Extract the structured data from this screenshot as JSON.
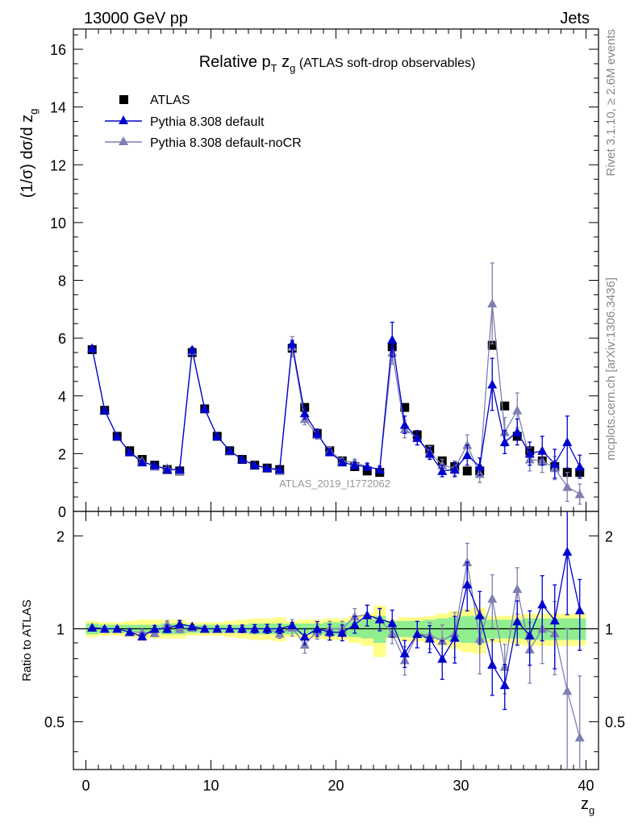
{
  "header": {
    "energy": "13000 GeV pp",
    "group": "Jets",
    "title_main": "Relative p",
    "title_sub_t": "T",
    "title_mid": " z",
    "title_sub_g": "g",
    "title_paren": " (ATLAS soft-drop observables)",
    "ylabel": "(1/σ) dσ/d z",
    "ylabel_sub": "g",
    "xlabel": "z",
    "xlabel_sub": "g",
    "ratio_label": "Ratio to ATLAS",
    "watermark": "ATLAS_2019_I1772062",
    "rivet_note": "Rivet 3.1.10, ≥ 2.6M events",
    "mcplots_note": "mcplots.cern.ch [arXiv:1306.3436]"
  },
  "legend": {
    "atlas": "ATLAS",
    "pythia_default": "Pythia 8.308 default",
    "pythia_nocr": "Pythia 8.308 default-noCR"
  },
  "colors": {
    "data": "#000000",
    "pythia_default": "#0000cc",
    "pythia_nocr": "#7f7fb2",
    "band_inner": "#90ee90",
    "band_outer": "#ffff88"
  },
  "chart_data": {
    "type": "scatter",
    "x": [
      0.5,
      1.5,
      2.5,
      3.5,
      4.5,
      5.5,
      6.5,
      7.5,
      8.5,
      9.5,
      10.5,
      11.5,
      12.5,
      13.5,
      14.5,
      15.5,
      16.5,
      17.5,
      18.5,
      19.5,
      20.5,
      21.5,
      22.5,
      23.5,
      24.5,
      25.5,
      26.5,
      27.5,
      28.5,
      29.5,
      30.5,
      31.5,
      32.5,
      33.5,
      34.5,
      35.5,
      36.5,
      37.5,
      38.5,
      39.5
    ],
    "xlim": [
      -1,
      41
    ],
    "xticks": [
      0,
      10,
      20,
      30,
      40
    ],
    "main_ylim": [
      0,
      16.7
    ],
    "main_yticks": [
      0,
      2,
      4,
      6,
      8,
      10,
      12,
      14,
      16
    ],
    "ratio_ylim": [
      0.35,
      2.4
    ],
    "ratio_yticks": [
      0.5,
      1,
      2
    ],
    "series": [
      {
        "name": "ATLAS",
        "values": [
          5.6,
          3.5,
          2.6,
          2.1,
          1.8,
          1.6,
          1.45,
          1.4,
          5.5,
          3.55,
          2.6,
          2.1,
          1.8,
          1.6,
          1.5,
          1.45,
          5.65,
          3.6,
          2.7,
          2.1,
          1.75,
          1.55,
          1.4,
          1.35,
          5.7,
          3.6,
          2.65,
          2.15,
          1.75,
          1.55,
          1.4,
          1.4,
          5.75,
          3.65,
          2.6,
          2.1,
          1.75,
          1.55,
          1.35,
          1.35
        ],
        "rel_err_inner": [
          0.04,
          0.03,
          0.03,
          0.03,
          0.03,
          0.03,
          0.04,
          0.04,
          0.03,
          0.03,
          0.03,
          0.03,
          0.03,
          0.04,
          0.04,
          0.04,
          0.04,
          0.04,
          0.04,
          0.05,
          0.05,
          0.06,
          0.07,
          0.1,
          0.06,
          0.06,
          0.06,
          0.07,
          0.08,
          0.09,
          0.1,
          0.1,
          0.07,
          0.07,
          0.07,
          0.08,
          0.08,
          0.08,
          0.08,
          0.08
        ],
        "rel_err_outer": [
          0.06,
          0.05,
          0.05,
          0.06,
          0.07,
          0.07,
          0.07,
          0.07,
          0.05,
          0.05,
          0.05,
          0.06,
          0.07,
          0.08,
          0.08,
          0.09,
          0.06,
          0.07,
          0.07,
          0.08,
          0.08,
          0.1,
          0.12,
          0.19,
          0.07,
          0.09,
          0.09,
          0.1,
          0.12,
          0.14,
          0.16,
          0.17,
          0.1,
          0.1,
          0.11,
          0.12,
          0.12,
          0.12,
          0.12,
          0.12
        ]
      },
      {
        "name": "Pythia 8.308 default",
        "values": [
          5.65,
          3.5,
          2.6,
          2.05,
          1.7,
          1.6,
          1.45,
          1.45,
          5.6,
          3.55,
          2.6,
          2.1,
          1.8,
          1.6,
          1.5,
          1.45,
          5.8,
          3.4,
          2.7,
          2.05,
          1.7,
          1.6,
          1.55,
          1.45,
          5.95,
          3.0,
          2.55,
          2.0,
          1.4,
          1.45,
          1.95,
          1.55,
          4.4,
          2.4,
          2.75,
          2.0,
          2.1,
          1.65,
          2.4,
          1.55
        ],
        "err": [
          0.05,
          0.05,
          0.04,
          0.04,
          0.04,
          0.04,
          0.04,
          0.04,
          0.08,
          0.06,
          0.05,
          0.05,
          0.05,
          0.05,
          0.05,
          0.05,
          0.12,
          0.2,
          0.15,
          0.12,
          0.1,
          0.1,
          0.12,
          0.12,
          0.6,
          0.3,
          0.25,
          0.2,
          0.2,
          0.25,
          0.35,
          0.3,
          0.9,
          0.4,
          0.45,
          0.4,
          0.5,
          0.5,
          0.9,
          0.4
        ]
      },
      {
        "name": "Pythia 8.308 default-noCR",
        "values": [
          5.65,
          3.5,
          2.6,
          2.05,
          1.75,
          1.55,
          1.5,
          1.4,
          5.55,
          3.55,
          2.6,
          2.1,
          1.8,
          1.6,
          1.5,
          1.4,
          5.7,
          3.2,
          2.65,
          2.1,
          1.75,
          1.7,
          1.55,
          1.45,
          5.5,
          2.85,
          2.55,
          2.05,
          1.6,
          1.5,
          2.3,
          1.3,
          7.2,
          2.75,
          3.5,
          1.8,
          1.75,
          1.5,
          0.85,
          0.6
        ],
        "err": [
          0.05,
          0.05,
          0.04,
          0.04,
          0.04,
          0.04,
          0.04,
          0.04,
          0.08,
          0.06,
          0.05,
          0.05,
          0.05,
          0.05,
          0.05,
          0.05,
          0.35,
          0.2,
          0.15,
          0.12,
          0.1,
          0.1,
          0.12,
          0.12,
          0.4,
          0.3,
          0.25,
          0.2,
          0.2,
          0.25,
          0.35,
          0.3,
          1.4,
          0.5,
          0.6,
          0.4,
          0.4,
          0.4,
          0.5,
          0.35
        ]
      }
    ]
  }
}
